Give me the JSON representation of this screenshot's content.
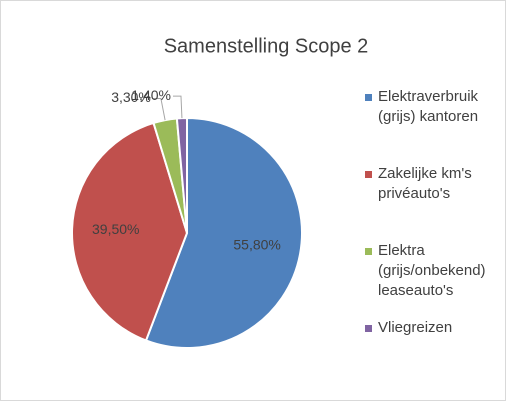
{
  "chart_data": {
    "type": "pie",
    "title": "Samenstelling Scope 2",
    "categories": [
      "Elektraverbruik (grijs) kantoren",
      "Zakelijke km's privéauto's",
      "Elektra (grijs/onbekend) leaseauto's",
      "Vliegreizen"
    ],
    "values": [
      55.8,
      39.5,
      3.3,
      1.4
    ],
    "value_labels": [
      "55,80%",
      "39,50%",
      "3,30%",
      "1,40%"
    ],
    "colors": [
      "#4f81bd",
      "#c0504d",
      "#9bbb59",
      "#8064a2"
    ],
    "legend": "right"
  }
}
